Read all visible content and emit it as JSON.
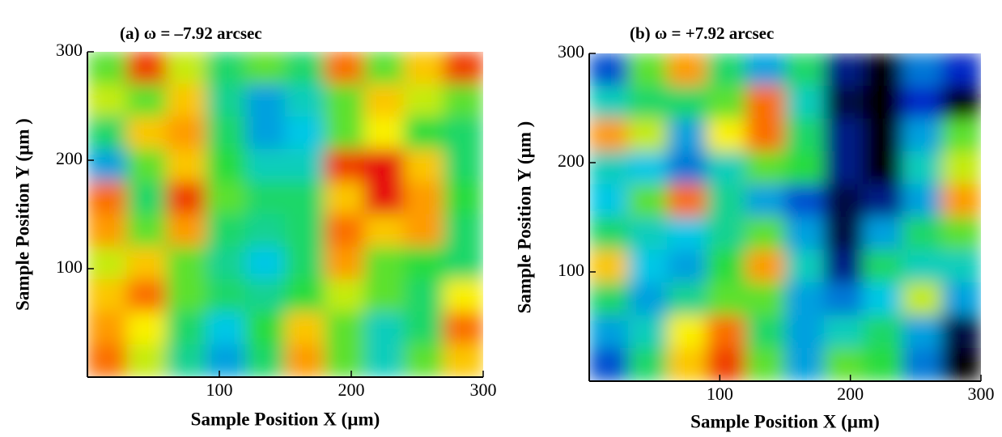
{
  "chart_data": [
    {
      "type": "heatmap",
      "title": "(a) ω = –7.92 arcsec",
      "x_label": "Sample Position X  (µm)",
      "y_label": "Sample Position Y  (µm )",
      "xlim": [
        0,
        300
      ],
      "ylim": [
        0,
        300
      ],
      "xticks": [
        100,
        200,
        300
      ],
      "yticks": [
        100,
        200,
        300
      ],
      "x": [
        15,
        45,
        75,
        105,
        135,
        165,
        195,
        225,
        255,
        285
      ],
      "y": [
        285,
        255,
        225,
        195,
        165,
        135,
        105,
        75,
        45,
        15
      ],
      "z": [
        [
          0.6,
          0.95,
          0.7,
          0.5,
          0.6,
          0.5,
          0.9,
          0.6,
          0.8,
          0.95
        ],
        [
          0.7,
          0.6,
          0.8,
          0.45,
          0.3,
          0.4,
          0.6,
          0.8,
          0.7,
          0.6
        ],
        [
          0.5,
          0.8,
          0.85,
          0.5,
          0.3,
          0.35,
          0.6,
          0.75,
          0.55,
          0.5
        ],
        [
          0.3,
          0.6,
          0.8,
          0.55,
          0.4,
          0.4,
          0.95,
          1.0,
          0.8,
          0.5
        ],
        [
          0.9,
          0.5,
          0.95,
          0.6,
          0.5,
          0.5,
          0.8,
          1.0,
          0.85,
          0.55
        ],
        [
          0.85,
          0.6,
          0.85,
          0.5,
          0.45,
          0.5,
          0.9,
          0.8,
          0.85,
          0.5
        ],
        [
          0.7,
          0.8,
          0.6,
          0.45,
          0.35,
          0.5,
          0.85,
          0.6,
          0.55,
          0.5
        ],
        [
          0.8,
          0.9,
          0.6,
          0.5,
          0.45,
          0.55,
          0.7,
          0.6,
          0.5,
          0.75
        ],
        [
          0.85,
          0.75,
          0.5,
          0.35,
          0.55,
          0.8,
          0.6,
          0.4,
          0.5,
          0.9
        ],
        [
          0.9,
          0.7,
          0.45,
          0.3,
          0.5,
          0.85,
          0.6,
          0.4,
          0.6,
          0.8
        ]
      ]
    },
    {
      "type": "heatmap",
      "title": "(b) ω = +7.92 arcsec",
      "x_label": "Sample Position X  (µm)",
      "y_label": "Sample Position Y  (µm )",
      "xlim": [
        0,
        300
      ],
      "ylim": [
        0,
        300
      ],
      "xticks": [
        100,
        200,
        300
      ],
      "yticks": [
        100,
        200,
        300
      ],
      "x": [
        15,
        45,
        75,
        105,
        135,
        165,
        195,
        225,
        255,
        285
      ],
      "y": [
        285,
        255,
        225,
        195,
        165,
        135,
        105,
        75,
        45,
        15
      ],
      "z": [
        [
          0.2,
          0.6,
          0.85,
          0.5,
          0.3,
          0.5,
          0.1,
          0,
          0.25,
          0.15
        ],
        [
          0.4,
          0.5,
          0.5,
          0.6,
          0.9,
          0.4,
          0.05,
          0,
          0.15,
          0
        ],
        [
          0.85,
          0.7,
          0.3,
          0.75,
          0.9,
          0.5,
          0.1,
          0,
          0.3,
          0.6
        ],
        [
          0.4,
          0.35,
          0.25,
          0.4,
          0.6,
          0.55,
          0.1,
          0,
          0.4,
          0.7
        ],
        [
          0.35,
          0.6,
          0.9,
          0.45,
          0.3,
          0.2,
          0.05,
          0.1,
          0.3,
          0.85
        ],
        [
          0.5,
          0.4,
          0.35,
          0.45,
          0.6,
          0.3,
          0.05,
          0.3,
          0.5,
          0.6
        ],
        [
          0.8,
          0.35,
          0.3,
          0.55,
          0.85,
          0.4,
          0.1,
          0.5,
          0.4,
          0.4
        ],
        [
          0.5,
          0.3,
          0.45,
          0.6,
          0.6,
          0.3,
          0.25,
          0.35,
          0.7,
          0.3
        ],
        [
          0.3,
          0.4,
          0.75,
          0.9,
          0.5,
          0.3,
          0.4,
          0.5,
          0.3,
          0.05
        ],
        [
          0.2,
          0.5,
          0.8,
          0.95,
          0.6,
          0.3,
          0.6,
          0.55,
          0.25,
          0
        ]
      ]
    }
  ]
}
